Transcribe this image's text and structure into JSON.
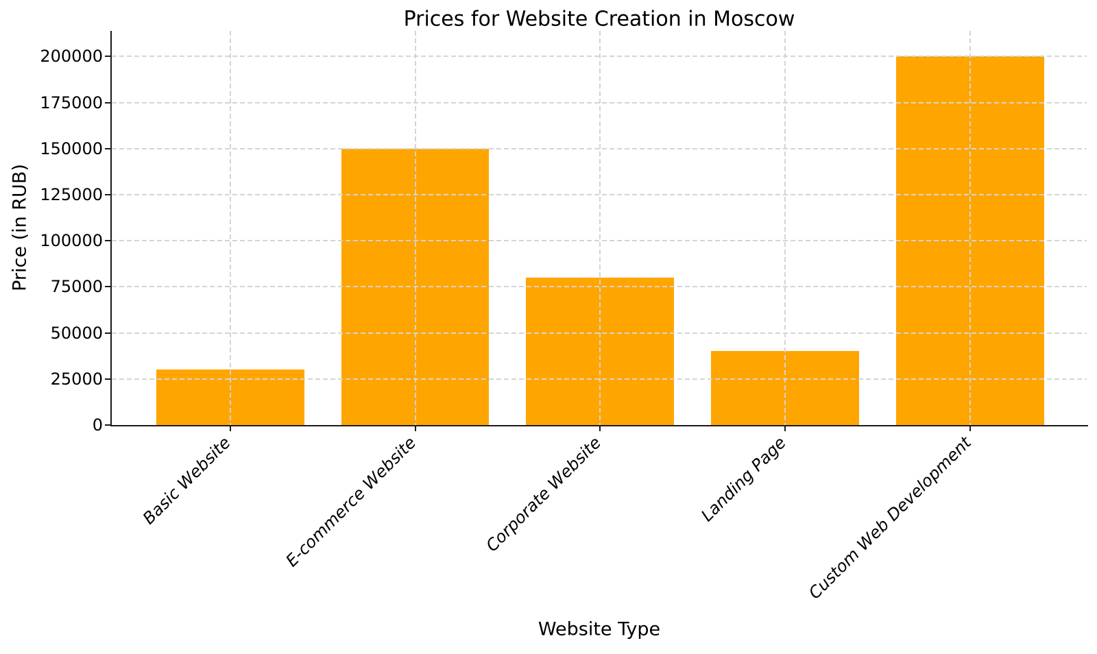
{
  "chart_data": {
    "type": "bar",
    "title": "Prices for Website Creation in Moscow",
    "xlabel": "Website Type",
    "ylabel": "Price (in RUB)",
    "categories": [
      "Basic Website",
      "E-commerce Website",
      "Corporate Website",
      "Landing Page",
      "Custom Web Development"
    ],
    "values": [
      30000,
      150000,
      80000,
      40000,
      200000
    ],
    "yticks": [
      0,
      25000,
      50000,
      75000,
      100000,
      125000,
      150000,
      175000,
      200000
    ],
    "ylim": [
      0,
      213500
    ],
    "bar_color": "#FFA500",
    "grid": "dashed light-gray grid on both axes, drawn above bars",
    "legend_position": "none",
    "x_tick_label_style": "rotated 45deg, italic"
  }
}
